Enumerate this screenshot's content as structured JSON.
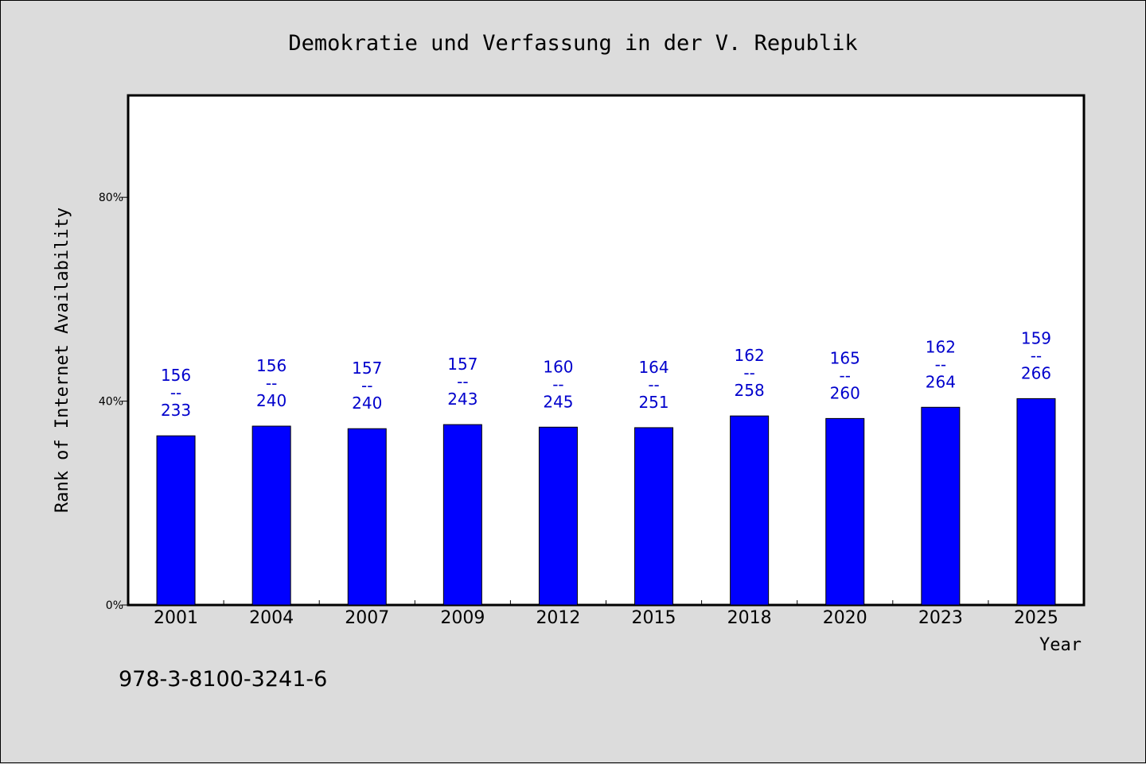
{
  "chart_data": {
    "type": "bar",
    "title": "Demokratie und Verfassung in der V. Republik",
    "xlabel": "Year",
    "ylabel": "Rank of Internet Availability",
    "categories": [
      "2001",
      "2004",
      "2007",
      "2009",
      "2012",
      "2015",
      "2018",
      "2020",
      "2023",
      "2025"
    ],
    "values": [
      33.2,
      35.1,
      34.6,
      35.4,
      34.9,
      34.8,
      37.1,
      36.6,
      38.8,
      40.5
    ],
    "value_unit": "%",
    "ranks": [
      "156",
      "156",
      "157",
      "157",
      "160",
      "164",
      "162",
      "165",
      "162",
      "159"
    ],
    "totals": [
      "233",
      "240",
      "240",
      "243",
      "245",
      "251",
      "258",
      "260",
      "264",
      "266"
    ],
    "label_separator": "--",
    "ylim": [
      0,
      100
    ],
    "yticks": [
      {
        "value": 0,
        "label": "0%"
      },
      {
        "value": 40,
        "label": "40%"
      },
      {
        "value": 80,
        "label": "80%"
      }
    ],
    "grid": false,
    "bar_color": "#0000ff",
    "label_color": "#0000cc",
    "note": "978-3-8100-3241-6"
  }
}
